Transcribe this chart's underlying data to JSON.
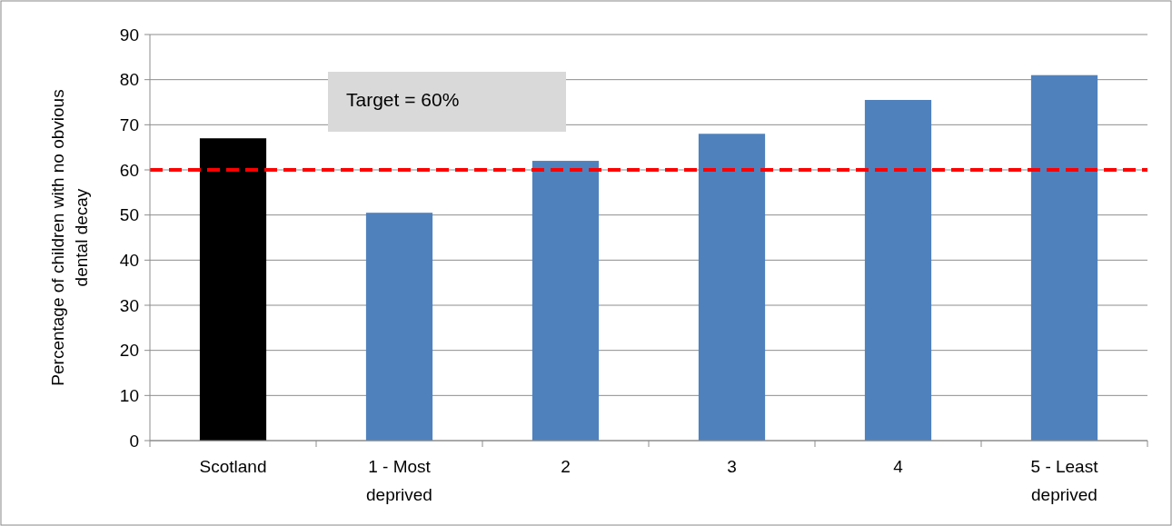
{
  "chart_data": {
    "type": "bar",
    "ylabel": "Percentage of children with no obvious dental decay",
    "categories": [
      "Scotland",
      "1 - Most deprived",
      "2",
      "3",
      "4",
      "5 - Least deprived"
    ],
    "values": [
      67,
      50.5,
      62,
      68,
      75.5,
      81
    ],
    "colors": [
      "#000000",
      "#4f81bd",
      "#4f81bd",
      "#4f81bd",
      "#4f81bd",
      "#4f81bd"
    ],
    "ylim": [
      0,
      90
    ],
    "yticks": [
      0,
      10,
      20,
      30,
      40,
      50,
      60,
      70,
      80,
      90
    ],
    "grid": "y",
    "annotations": [
      "Target = 60%"
    ],
    "ref_lines": [
      {
        "axis": "y",
        "value": 60,
        "color": "#ff0000",
        "line_style": "dashed"
      }
    ]
  }
}
